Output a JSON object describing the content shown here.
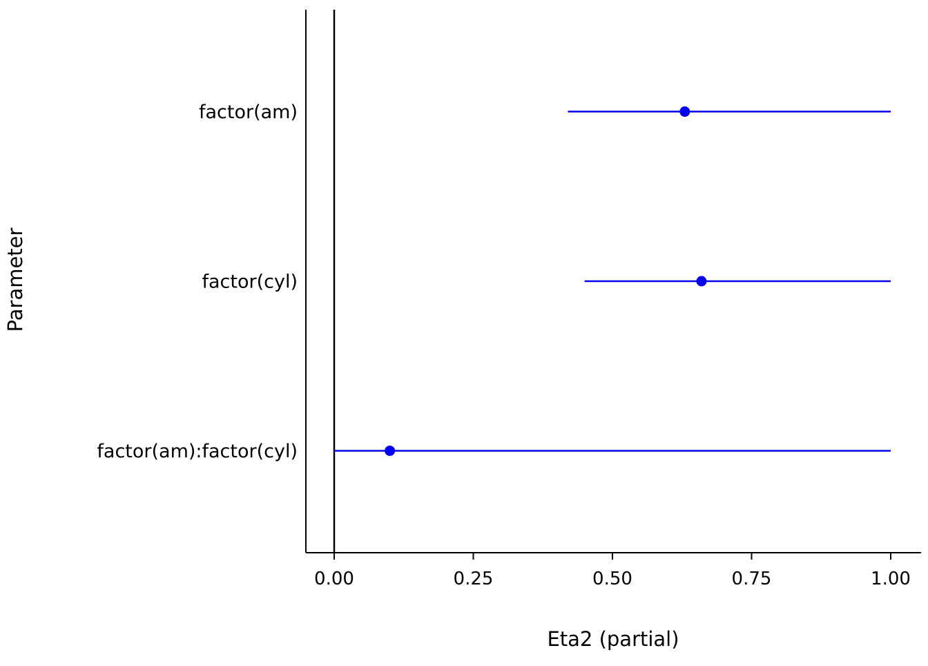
{
  "chart_data": {
    "type": "scatter",
    "subtype": "forest-plot",
    "orientation": "horizontal",
    "title": "",
    "xlabel": "Eta2 (partial)",
    "ylabel": "Parameter",
    "xlim": [
      0,
      1
    ],
    "x_ticks": [
      0.0,
      0.25,
      0.5,
      0.75,
      1.0
    ],
    "x_tick_labels": [
      "0.00",
      "0.25",
      "0.50",
      "0.75",
      "1.00"
    ],
    "categories": [
      "factor(am)",
      "factor(cyl)",
      "factor(am):factor(cyl)"
    ],
    "series": [
      {
        "name": "Eta2 (partial)",
        "points": [
          {
            "label": "factor(am)",
            "estimate": 0.63,
            "ci_low": 0.42,
            "ci_high": 1.0
          },
          {
            "label": "factor(cyl)",
            "estimate": 0.66,
            "ci_low": 0.45,
            "ci_high": 1.0
          },
          {
            "label": "factor(am):factor(cyl)",
            "estimate": 0.1,
            "ci_low": 0.0,
            "ci_high": 1.0
          }
        ]
      }
    ],
    "reference_line_x": 0,
    "point_color": "#0000ee",
    "line_color": "#0000ee",
    "axis_color": "#000000",
    "background_color": "#ffffff",
    "grid": false,
    "legend": false
  }
}
